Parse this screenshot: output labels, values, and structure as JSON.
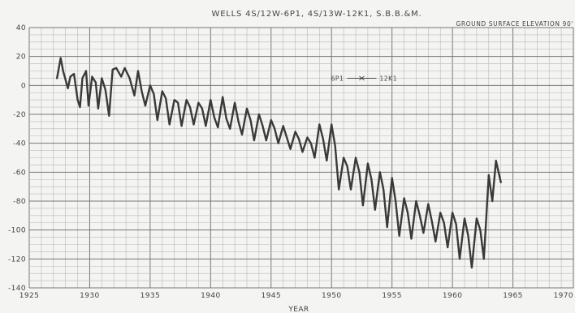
{
  "chart_data": {
    "type": "line",
    "title": "WELLS 4S/12W-6P1, 4S/13W-12K1, S.B.B.&M.",
    "annotation": "GROUND SURFACE ELEVATION 90'",
    "xlabel": "YEAR",
    "ylabel": "",
    "xlim": [
      1925,
      1970
    ],
    "ylim": [
      -140,
      40
    ],
    "x_ticks": [
      1925,
      1930,
      1935,
      1940,
      1945,
      1950,
      1955,
      1960,
      1965,
      1970
    ],
    "y_ticks": [
      40,
      20,
      0,
      -20,
      -40,
      -60,
      -80,
      -100,
      -120,
      -140
    ],
    "well_transition": {
      "left_label": "6P1",
      "right_label": "12K1",
      "year": 1952.5,
      "value": 5
    },
    "grid": true,
    "series": [
      {
        "x": [
          1927.3,
          1927.6,
          1927.8,
          1928.2,
          1928.4,
          1928.7,
          1929.0,
          1929.2,
          1929.4,
          1929.7,
          1929.9,
          1930.2,
          1930.5,
          1930.7,
          1931.0,
          1931.3,
          1931.6,
          1931.9,
          1932.2,
          1932.6,
          1932.9,
          1933.3,
          1933.7,
          1934.0,
          1934.3,
          1934.6,
          1935.0,
          1935.3,
          1935.6,
          1936.0,
          1936.3,
          1936.6,
          1937.0,
          1937.3,
          1937.6,
          1938.0,
          1938.3,
          1938.6,
          1939.0,
          1939.3,
          1939.6,
          1940.0,
          1940.3,
          1940.6,
          1941.0,
          1941.3,
          1941.6,
          1942.0,
          1942.3,
          1942.6,
          1943.0,
          1943.3,
          1943.6,
          1944.0,
          1944.3,
          1944.6,
          1945.0,
          1945.3,
          1945.6,
          1946.0,
          1946.3,
          1946.6,
          1947.0,
          1947.3,
          1947.6,
          1948.0,
          1948.3,
          1948.6,
          1949.0,
          1949.3,
          1949.6,
          1950.0,
          1950.3,
          1950.6,
          1951.0,
          1951.3,
          1951.6,
          1952.0,
          1952.3,
          1952.6,
          1953.0,
          1953.3,
          1953.6,
          1954.0,
          1954.3,
          1954.6,
          1955.0,
          1955.3,
          1955.6,
          1956.0,
          1956.3,
          1956.6,
          1957.0,
          1957.3,
          1957.6,
          1958.0,
          1958.3,
          1958.6,
          1959.0,
          1959.3,
          1959.6,
          1960.0,
          1960.3,
          1960.6,
          1961.0,
          1961.3,
          1961.6,
          1962.0,
          1962.3,
          1962.6,
          1963.0,
          1963.3,
          1963.6,
          1964.0
        ],
        "values": [
          5,
          19,
          10,
          -2,
          6,
          8,
          -10,
          -15,
          5,
          10,
          -14,
          6,
          2,
          -16,
          5,
          -3,
          -21,
          11,
          12,
          6,
          12,
          5,
          -7,
          10,
          -4,
          -14,
          0,
          -6,
          -24,
          -4,
          -9,
          -27,
          -10,
          -12,
          -28,
          -10,
          -15,
          -27,
          -12,
          -16,
          -28,
          -10,
          -22,
          -29,
          -8,
          -23,
          -30,
          -12,
          -25,
          -34,
          -16,
          -24,
          -38,
          -20,
          -28,
          -38,
          -24,
          -30,
          -40,
          -28,
          -36,
          -44,
          -32,
          -37,
          -46,
          -36,
          -40,
          -50,
          -27,
          -37,
          -52,
          -27,
          -42,
          -72,
          -50,
          -56,
          -72,
          -50,
          -60,
          -83,
          -54,
          -65,
          -86,
          -60,
          -72,
          -98,
          -64,
          -80,
          -104,
          -78,
          -88,
          -106,
          -80,
          -90,
          -102,
          -82,
          -94,
          -108,
          -88,
          -95,
          -112,
          -88,
          -96,
          -120,
          -92,
          -104,
          -126,
          -92,
          -100,
          -120,
          -62,
          -80,
          -52,
          -67
        ]
      }
    ]
  }
}
